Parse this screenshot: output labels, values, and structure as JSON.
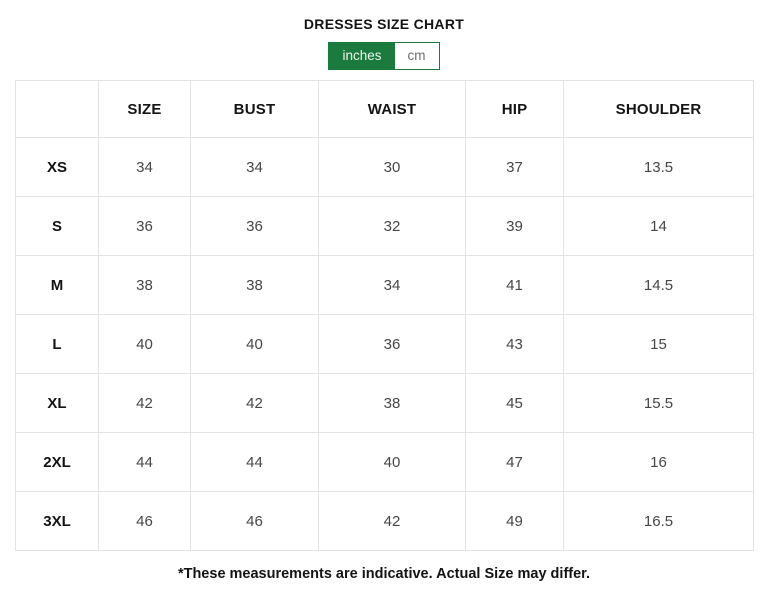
{
  "page": {
    "title": "DRESSES SIZE CHART",
    "footnote": "*These measurements are indicative. Actual Size may differ."
  },
  "unit_toggle": {
    "selected": "inches",
    "options": [
      {
        "label": "inches"
      },
      {
        "label": "cm"
      }
    ]
  },
  "colors": {
    "accent_green": "#1b7b3e",
    "selected_text": "#ecf7ec",
    "unselected_text": "#6d6d6d",
    "grid_border": "#e3e3e3",
    "heading_text": "#141414",
    "value_text": "#464646"
  },
  "table": {
    "columns": [
      "",
      "SIZE",
      "BUST",
      "WAIST",
      "HIP",
      "SHOULDER"
    ],
    "rows": [
      {
        "size": "XS",
        "values": [
          34,
          34,
          30,
          37,
          13.5
        ]
      },
      {
        "size": "S",
        "values": [
          36,
          36,
          32,
          39,
          14
        ]
      },
      {
        "size": "M",
        "values": [
          38,
          38,
          34,
          41,
          14.5
        ]
      },
      {
        "size": "L",
        "values": [
          40,
          40,
          36,
          43,
          15
        ]
      },
      {
        "size": "XL",
        "values": [
          42,
          42,
          38,
          45,
          15.5
        ]
      },
      {
        "size": "2XL",
        "values": [
          44,
          44,
          40,
          47,
          16
        ]
      },
      {
        "size": "3XL",
        "values": [
          46,
          46,
          42,
          49,
          16.5
        ]
      }
    ]
  }
}
